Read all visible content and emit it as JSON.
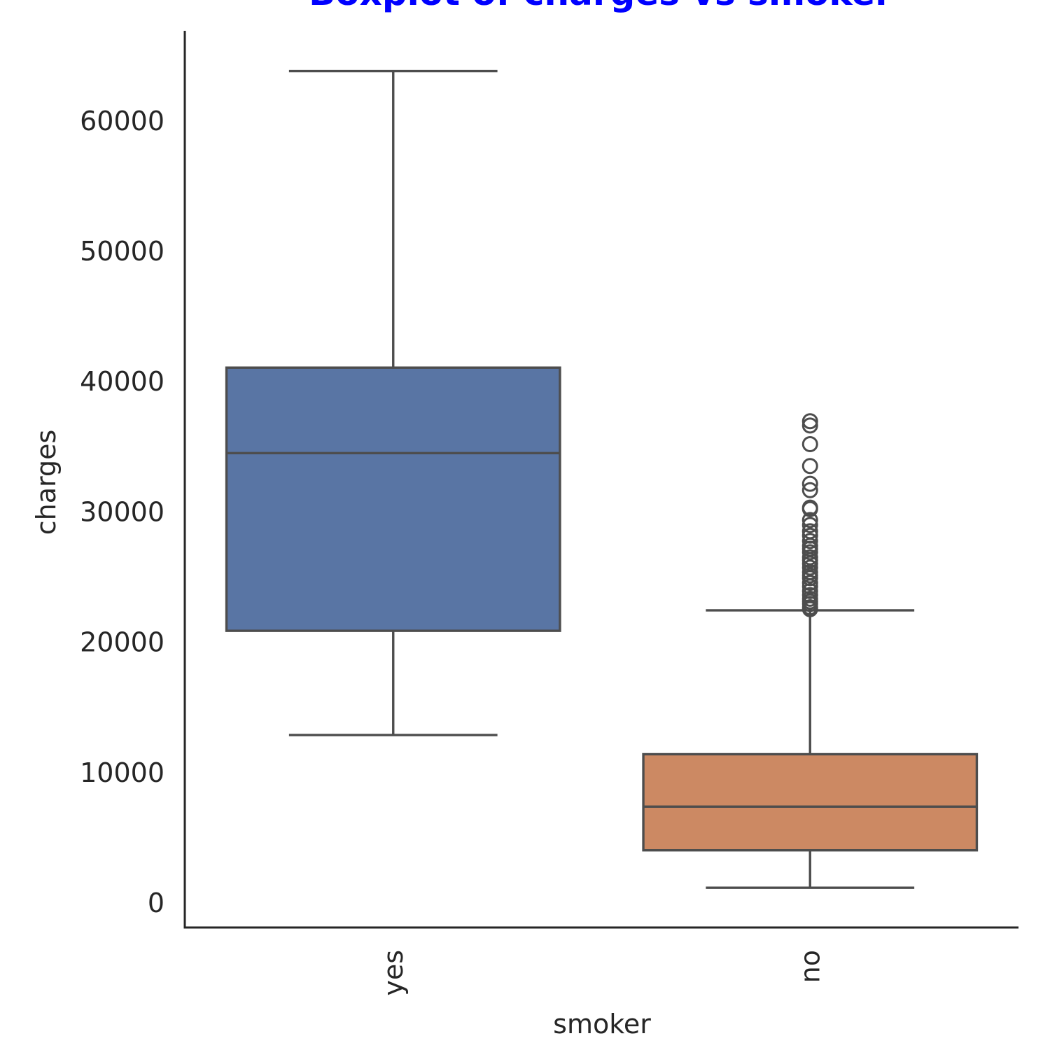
{
  "chart_data": {
    "type": "box",
    "title": "Boxplot of charges vs smoker",
    "title_color": "#0000ff",
    "xlabel": "smoker",
    "ylabel": "charges",
    "ylim": [
      -1900,
      66800
    ],
    "yticks": [
      0,
      10000,
      20000,
      30000,
      40000,
      50000,
      60000
    ],
    "grid": false,
    "line_color": "#4d4d4d",
    "axis_color": "#262626",
    "categories": [
      "yes",
      "no"
    ],
    "boxes": [
      {
        "category": "yes",
        "color": "#5975a4",
        "whisker_low": 12830,
        "q1": 20830,
        "median": 34460,
        "q3": 41020,
        "whisker_high": 63770,
        "outliers": []
      },
      {
        "category": "no",
        "color": "#cc8963",
        "whisker_low": 1120,
        "q1": 3990,
        "median": 7340,
        "q3": 11360,
        "whisker_high": 22400,
        "outliers": [
          22490,
          22640,
          22890,
          23080,
          23290,
          23570,
          23880,
          24230,
          24510,
          24870,
          25080,
          25330,
          25680,
          25990,
          26240,
          26470,
          26860,
          27120,
          27350,
          27720,
          28130,
          28470,
          28950,
          29330,
          30170,
          30280,
          31620,
          32110,
          33470,
          35150,
          36580,
          36910
        ]
      }
    ]
  }
}
